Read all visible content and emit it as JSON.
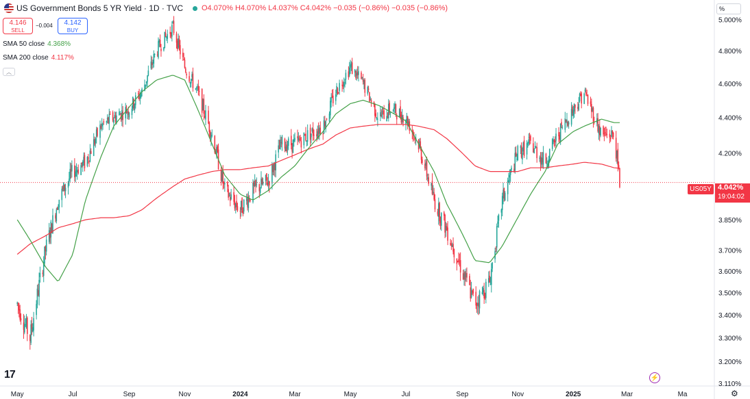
{
  "header": {
    "title": "US Government Bonds 5 YR Yield · 1D · TVC",
    "open": "O4.070%",
    "high": "H4.070%",
    "low": "L4.037%",
    "close": "C4.042%",
    "change": "−0.035 (−0.86%)",
    "change2": "−0.035 (−0.86%)"
  },
  "trade": {
    "sell_price": "4.146",
    "sell_label": "SELL",
    "spread": "−0.004",
    "buy_price": "4.142",
    "buy_label": "BUY"
  },
  "indicators": [
    {
      "label": "SMA 50 close",
      "value": "4.368%",
      "color": "#43a047"
    },
    {
      "label": "SMA 200 close",
      "value": "4.117%",
      "color": "#f23645"
    }
  ],
  "price_scale_mode": "%",
  "current": {
    "symbol": "US05Y",
    "price": "4.042%",
    "countdown": "19:04:02",
    "value": 4.042,
    "color": "#f23645"
  },
  "icons": {
    "collapse": "chevron-up-icon",
    "logo": "tradingview-logo-icon",
    "flash": "lightning-icon",
    "settings": "gear-icon"
  },
  "chart_data": {
    "type": "candlestick",
    "x": [
      "2023-05-01",
      "2023-05-15",
      "2023-06-01",
      "2023-06-15",
      "2023-07-01",
      "2023-07-15",
      "2023-08-01",
      "2023-08-15",
      "2023-09-01",
      "2023-09-15",
      "2023-10-01",
      "2023-10-19",
      "2023-11-01",
      "2023-11-15",
      "2023-12-01",
      "2023-12-15",
      "2024-01-01",
      "2024-01-15",
      "2024-02-01",
      "2024-02-15",
      "2024-03-01",
      "2024-03-15",
      "2024-04-01",
      "2024-04-15",
      "2024-05-01",
      "2024-05-15",
      "2024-06-01",
      "2024-06-15",
      "2024-07-01",
      "2024-07-15",
      "2024-08-01",
      "2024-08-15",
      "2024-09-01",
      "2024-09-15",
      "2024-10-01",
      "2024-10-15",
      "2024-11-01",
      "2024-11-15",
      "2024-12-01",
      "2024-12-15",
      "2025-01-01",
      "2025-01-13",
      "2025-02-01",
      "2025-02-15",
      "2025-02-21"
    ],
    "values": [
      3.45,
      3.3,
      3.7,
      3.95,
      4.1,
      4.15,
      4.35,
      4.4,
      4.45,
      4.55,
      4.8,
      4.95,
      4.7,
      4.55,
      4.3,
      4.0,
      3.9,
      4.0,
      4.05,
      4.25,
      4.25,
      4.3,
      4.35,
      4.55,
      4.7,
      4.6,
      4.4,
      4.45,
      4.4,
      4.25,
      3.95,
      3.8,
      3.6,
      3.45,
      3.55,
      3.95,
      4.2,
      4.25,
      4.15,
      4.3,
      4.45,
      4.55,
      4.3,
      4.3,
      4.04
    ],
    "sma50": [
      3.85,
      3.75,
      3.62,
      3.55,
      3.68,
      3.95,
      4.18,
      4.35,
      4.46,
      4.55,
      4.62,
      4.65,
      4.62,
      4.45,
      4.25,
      4.08,
      3.98,
      3.95,
      4.0,
      4.07,
      4.13,
      4.22,
      4.32,
      4.42,
      4.48,
      4.5,
      4.47,
      4.43,
      4.38,
      4.25,
      4.1,
      3.93,
      3.78,
      3.65,
      3.64,
      3.72,
      3.86,
      3.98,
      4.1,
      4.25,
      4.32,
      4.35,
      4.39,
      4.37,
      4.37
    ],
    "sma200": [
      3.68,
      3.73,
      3.77,
      3.81,
      3.83,
      3.85,
      3.86,
      3.86,
      3.87,
      3.9,
      3.96,
      4.02,
      4.06,
      4.08,
      4.1,
      4.11,
      4.11,
      4.12,
      4.13,
      4.16,
      4.19,
      4.22,
      4.25,
      4.3,
      4.34,
      4.35,
      4.36,
      4.36,
      4.36,
      4.35,
      4.33,
      4.28,
      4.2,
      4.13,
      4.1,
      4.1,
      4.1,
      4.12,
      4.12,
      4.13,
      4.14,
      4.15,
      4.14,
      4.12,
      4.117
    ],
    "xticks": [
      "May",
      "Jul",
      "Sep",
      "Nov",
      "2024",
      "Mar",
      "May",
      "Jul",
      "Sep",
      "Nov",
      "2025",
      "Mar",
      "Mar",
      "May"
    ],
    "xtick_dates": [
      "2023-05-01",
      "2023-07-01",
      "2023-09-01",
      "2023-11-01",
      "2024-01-01",
      "2024-03-01",
      "2024-05-01",
      "2024-07-01",
      "2024-09-01",
      "2024-11-01",
      "2025-01-01",
      "2025-03-01",
      "2025-05-01",
      "2025-07-01"
    ],
    "xticks_shown": [
      "May",
      "Jul",
      "Sep",
      "Nov",
      "2024",
      "Mar",
      "May",
      "Jul",
      "Sep",
      "Nov",
      "2025",
      "Mar",
      "Ma"
    ],
    "yticks": [
      5.0,
      4.8,
      4.6,
      4.4,
      4.2,
      3.85,
      3.7,
      3.6,
      3.5,
      3.4,
      3.3,
      3.2,
      3.11
    ],
    "ytick_labels": [
      "5.000%",
      "4.800%",
      "4.600%",
      "4.400%",
      "4.200%",
      "3.850%",
      "3.700%",
      "3.600%",
      "3.500%",
      "3.400%",
      "3.300%",
      "3.200%",
      "3.110%"
    ],
    "ylim": [
      3.11,
      5.02
    ],
    "xlim": [
      "2023-04-12",
      "2025-06-05"
    ],
    "y_scale": "log",
    "up_color": "#26a69a",
    "down_color": "#f23645",
    "sma50_color": "#43a047",
    "sma200_color": "#f23645",
    "grid": false,
    "last_value": 4.042
  }
}
